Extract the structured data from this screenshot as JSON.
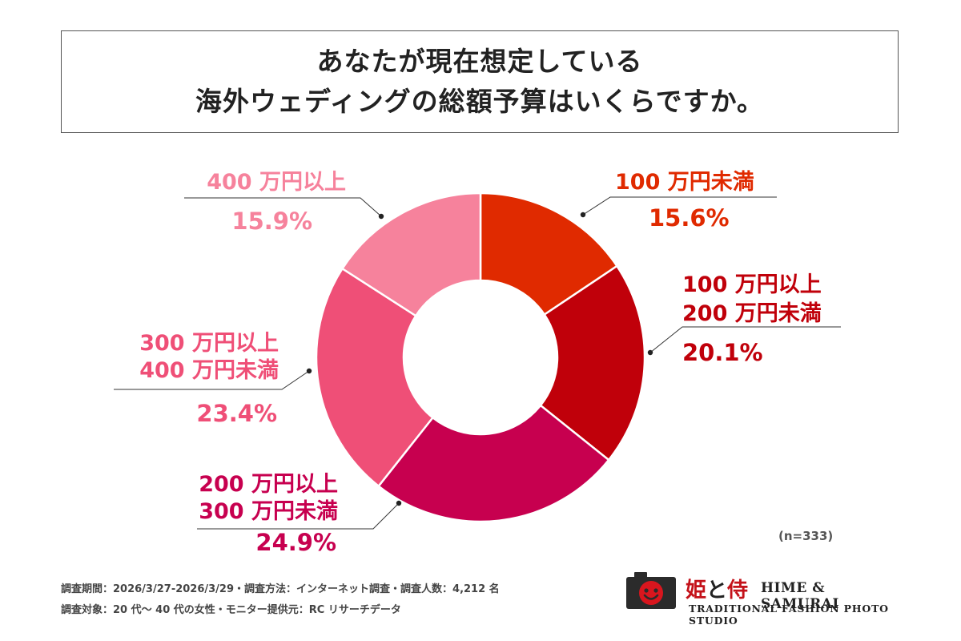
{
  "title": {
    "line1": "あなたが現在想定している",
    "line2": "海外ウェディングの総額予算はいくらですか。"
  },
  "chart_data": {
    "type": "pie",
    "variant": "donut",
    "slices": [
      {
        "label": "100 万円未満",
        "value": 15.6,
        "display": "15.6%",
        "color": "#e02a00"
      },
      {
        "label": "100 万円以上\n200 万円未満",
        "value": 20.1,
        "display": "20.1%",
        "color": "#c0000a"
      },
      {
        "label": "200 万円以上\n300 万円未満",
        "value": 24.9,
        "display": "24.9%",
        "color": "#c7004f"
      },
      {
        "label": "300 万円以上\n400 万円未満",
        "value": 23.4,
        "display": "23.4%",
        "color": "#ef4f77"
      },
      {
        "label": "400 万円以上",
        "value": 15.9,
        "display": "15.9%",
        "color": "#f6829c"
      }
    ],
    "label_colors": [
      "#e02a00",
      "#c0000a",
      "#c7004f",
      "#ef4f77",
      "#f6829c"
    ],
    "sample_size": "(n=333)"
  },
  "footnotes": {
    "line1": "調査期間：2026/3/27-2026/3/29・調査方法：インターネット調査・調査人数：4,212 名",
    "line2": "調査対象：20 代〜 40 代の女性・モニター提供元：RC リサーチデータ"
  },
  "logo": {
    "kanji_hime": "姫",
    "kanji_to": "と",
    "kanji_samurai": "侍",
    "name_en": "HIME & SAMURAI",
    "tagline": "TRADITIONAL FASHION PHOTO STUDIO",
    "camera_color": "#2b2b2b",
    "face_color": "#d8161e"
  }
}
